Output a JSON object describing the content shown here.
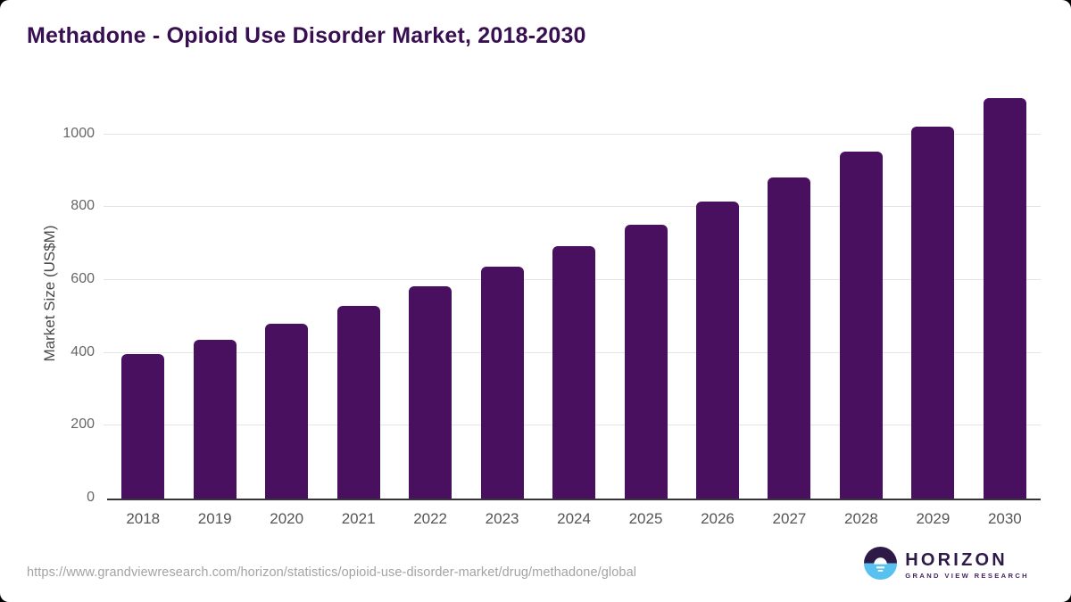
{
  "title": "Methadone - Opioid Use Disorder Market, 2018-2030",
  "chart_data": {
    "type": "bar",
    "title": "Methadone - Opioid Use Disorder Market, 2018-2030",
    "categories": [
      "2018",
      "2019",
      "2020",
      "2021",
      "2022",
      "2023",
      "2024",
      "2025",
      "2026",
      "2027",
      "2028",
      "2029",
      "2030"
    ],
    "values": [
      397,
      437,
      481,
      530,
      583,
      637,
      694,
      753,
      815,
      881,
      952,
      1022,
      1100
    ],
    "xlabel": "",
    "ylabel": "Market Size (US$M)",
    "ylim": [
      0,
      1127
    ],
    "yticks": [
      0,
      200,
      400,
      600,
      800,
      1000
    ],
    "grid": "horizontal-only",
    "legend": "none",
    "bar_color": "#4a1060",
    "gridline_color": "#e4e4e4",
    "axis_line_color": "#37343b",
    "tick_label_color": "#666666"
  },
  "footer": {
    "source_url": "https://www.grandviewresearch.com/horizon/statistics/opioid-use-disorder-market/drug/methadone/global",
    "logo": {
      "name": "HORIZON",
      "subtitle": "GRAND VIEW RESEARCH",
      "icon": "horizon-sunset-icon",
      "icon_top_color": "#2e1a47",
      "icon_bottom_color": "#58c1ef"
    }
  },
  "colors": {
    "title": "#381052",
    "background": "#ffffff"
  }
}
